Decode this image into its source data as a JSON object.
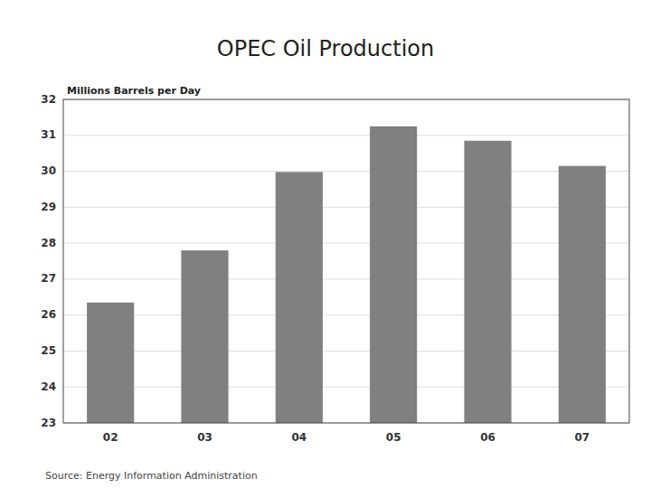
{
  "chart_data": {
    "type": "bar",
    "title": "OPEC Oil Production",
    "ylabel": "Millions Barrels per Day",
    "source": "Source: Energy Information Administration",
    "categories": [
      "02",
      "03",
      "04",
      "05",
      "06",
      "07"
    ],
    "values": [
      26.35,
      27.8,
      29.98,
      31.25,
      30.85,
      30.15
    ],
    "color": "#808080",
    "ylim": [
      23,
      32
    ],
    "yticks": [
      23,
      24,
      25,
      26,
      27,
      28,
      29,
      30,
      31,
      32
    ],
    "grid": true
  }
}
